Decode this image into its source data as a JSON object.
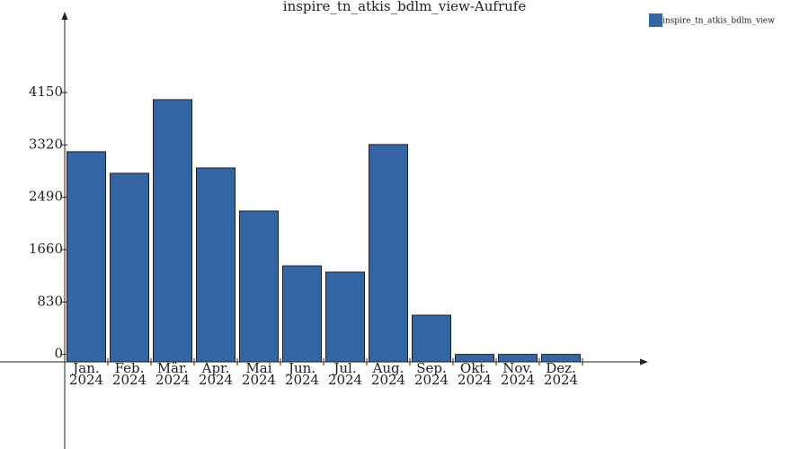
{
  "chart_data": {
    "type": "bar",
    "title": "inspire_tn_atkis_bdlm_view-Aufrufe",
    "categories": [
      [
        "Jan.",
        "2024"
      ],
      [
        "Feb.",
        "2024"
      ],
      [
        "Mär.",
        "2024"
      ],
      [
        "Apr.",
        "2024"
      ],
      [
        "Mai",
        "2024"
      ],
      [
        "Jun.",
        "2024"
      ],
      [
        "Jul.",
        "2024"
      ],
      [
        "Aug.",
        "2024"
      ],
      [
        "Sep.",
        "2024"
      ],
      [
        "Okt.",
        "2024"
      ],
      [
        "Nov.",
        "2024"
      ],
      [
        "Dez.",
        "2024"
      ]
    ],
    "series": [
      {
        "name": "inspire_tn_atkis_bdlm_view",
        "color": "#3465a4",
        "values": [
          3212,
          2870,
          4037,
          2955,
          2272,
          1403,
          1304,
          3326,
          621,
          0,
          0,
          0
        ]
      }
    ],
    "ylim": [
      -1500,
      5360
    ],
    "yticks": [
      0,
      830,
      1660,
      2490,
      3320,
      4150
    ]
  }
}
